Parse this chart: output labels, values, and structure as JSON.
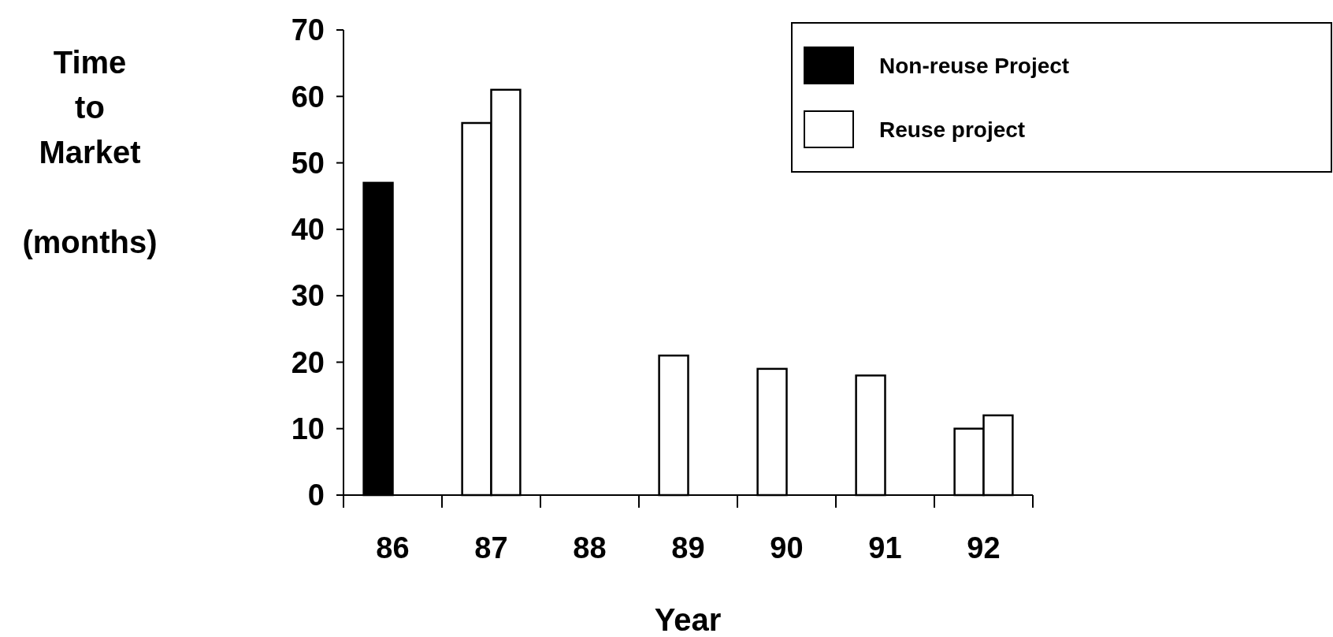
{
  "chart_data": {
    "type": "bar",
    "xlabel": "Year",
    "ylabel": "Time\nto\nMarket\n\n(months)",
    "categories": [
      "86",
      "87",
      "88",
      "89",
      "90",
      "91",
      "92"
    ],
    "series": [
      {
        "name": "Non-reuse Project",
        "color": "#000000",
        "values": [
          47,
          null,
          null,
          null,
          null,
          null,
          null
        ]
      },
      {
        "name": "Reuse project",
        "color": "#ffffff",
        "values": [
          null,
          56,
          null,
          21,
          19,
          18,
          10
        ]
      },
      {
        "color": "#ffffff",
        "values": [
          null,
          61,
          null,
          null,
          null,
          null,
          12
        ]
      }
    ],
    "ylim": [
      0,
      70
    ],
    "yticks": [
      0,
      10,
      20,
      30,
      40,
      50,
      60,
      70
    ],
    "grid": false,
    "legend": "top right"
  }
}
